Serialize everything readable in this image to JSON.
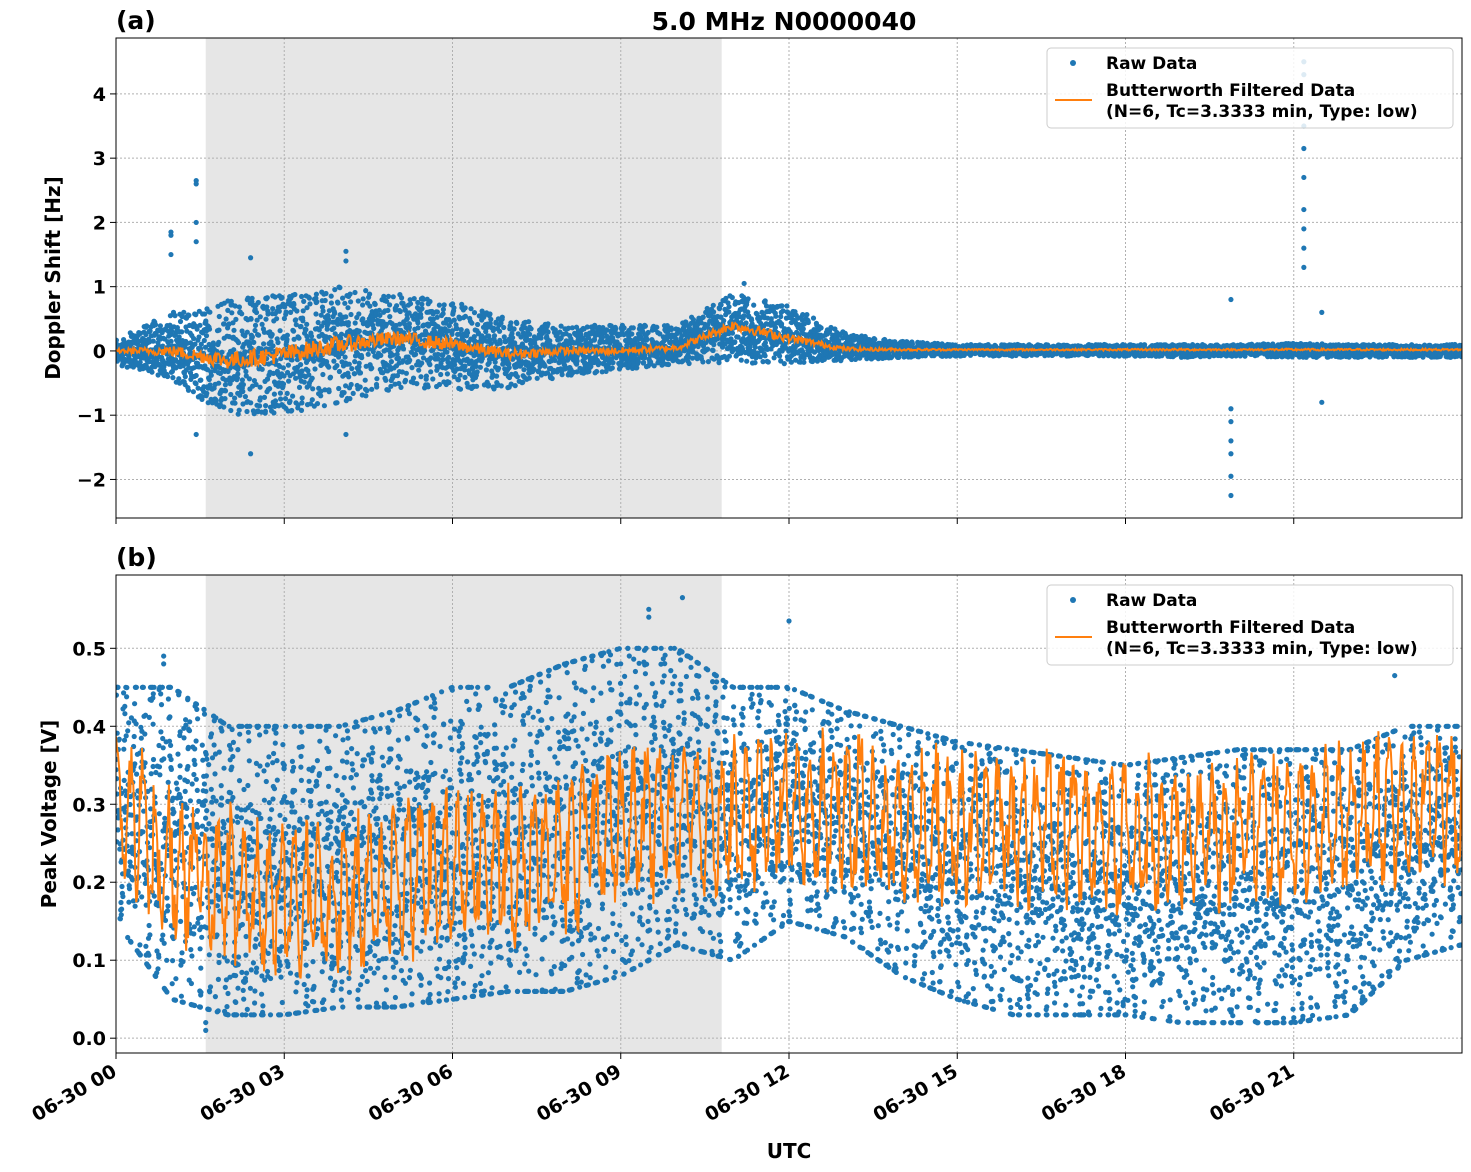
{
  "title": "5.0 MHz N0000040",
  "colors": {
    "raw": "#1f77b4",
    "filtered": "#ff7f0e",
    "shade": "#e6e6e6",
    "grid": "#b0b0b0"
  },
  "x_axis": {
    "label": "UTC",
    "range_hours": [
      0,
      24
    ],
    "ticks": [
      {
        "h": 0,
        "label": "06-30 00"
      },
      {
        "h": 3,
        "label": "06-30 03"
      },
      {
        "h": 6,
        "label": "06-30 06"
      },
      {
        "h": 9,
        "label": "06-30 09"
      },
      {
        "h": 12,
        "label": "06-30 12"
      },
      {
        "h": 15,
        "label": "06-30 15"
      },
      {
        "h": 18,
        "label": "06-30 18"
      },
      {
        "h": 21,
        "label": "06-30 21"
      }
    ]
  },
  "shaded_interval_hours": [
    1.6,
    10.8
  ],
  "legend": {
    "raw": "Raw Data",
    "filtered_line1": "Butterworth Filtered Data",
    "filtered_line2": "(N=6, Tc=3.3333 min, Type: low)",
    "placement": "upper-right"
  },
  "chart_data": [
    {
      "panel": "(a)",
      "type": "scatter+line",
      "ylabel": "Doppler Shift [Hz]",
      "ylim": [
        -2.6,
        4.87
      ],
      "yticks": [
        {
          "v": -2,
          "label": "−2"
        },
        {
          "v": -1,
          "label": "−1"
        },
        {
          "v": 0,
          "label": "0"
        },
        {
          "v": 1,
          "label": "1"
        },
        {
          "v": 2,
          "label": "2"
        },
        {
          "v": 3,
          "label": "3"
        },
        {
          "v": 4,
          "label": "4"
        }
      ],
      "grid": true,
      "hours": [
        0,
        1,
        2,
        3,
        4,
        5,
        6,
        7,
        8,
        9,
        10,
        11,
        12,
        13,
        14,
        15,
        16,
        17,
        18,
        19,
        20,
        21,
        22,
        23,
        24
      ],
      "filtered": [
        0.0,
        0.0,
        -0.15,
        -0.05,
        0.1,
        0.2,
        0.1,
        -0.05,
        0.0,
        0.0,
        0.05,
        0.4,
        0.2,
        0.03,
        0.02,
        0.02,
        0.02,
        0.02,
        0.02,
        0.02,
        0.02,
        0.02,
        0.02,
        0.02,
        0.02
      ],
      "raw_low": [
        -0.2,
        -0.5,
        -1.0,
        -1.0,
        -0.8,
        -0.6,
        -0.6,
        -0.6,
        -0.4,
        -0.3,
        -0.2,
        -0.2,
        -0.2,
        -0.15,
        -0.1,
        -0.08,
        -0.08,
        -0.08,
        -0.08,
        -0.1,
        -0.08,
        -0.1,
        -0.1,
        -0.1,
        -0.1
      ],
      "raw_high": [
        0.2,
        0.6,
        0.8,
        0.9,
        1.0,
        0.9,
        0.8,
        0.5,
        0.4,
        0.4,
        0.4,
        0.9,
        0.7,
        0.3,
        0.15,
        0.1,
        0.1,
        0.1,
        0.1,
        0.1,
        0.1,
        0.12,
        0.1,
        0.1,
        0.1
      ],
      "raw_outliers": [
        {
          "h": 1.43,
          "v": [
            2.65,
            2.6,
            2.0,
            1.7,
            -1.3
          ]
        },
        {
          "h": 0.98,
          "v": [
            1.85,
            1.8,
            1.5
          ]
        },
        {
          "h": 4.1,
          "v": [
            1.55,
            1.4,
            -1.3
          ]
        },
        {
          "h": 2.4,
          "v": [
            -1.6,
            1.45
          ]
        },
        {
          "h": 19.88,
          "v": [
            0.8,
            -0.9,
            -1.1,
            -1.4,
            -1.6,
            -1.95,
            -2.25
          ]
        },
        {
          "h": 21.18,
          "v": [
            4.5,
            4.3,
            3.5,
            3.15,
            2.7,
            2.2,
            1.9,
            1.6,
            1.3
          ]
        },
        {
          "h": 21.5,
          "v": [
            0.6,
            -0.8
          ]
        },
        {
          "h": 11.2,
          "v": [
            1.05
          ]
        }
      ]
    },
    {
      "panel": "(b)",
      "type": "scatter+line",
      "ylabel": "Peak Voltage [V]",
      "ylim": [
        -0.019,
        0.594
      ],
      "yticks": [
        {
          "v": 0,
          "label": "0.0"
        },
        {
          "v": 0.1,
          "label": "0.1"
        },
        {
          "v": 0.2,
          "label": "0.2"
        },
        {
          "v": 0.3,
          "label": "0.3"
        },
        {
          "v": 0.4,
          "label": "0.4"
        },
        {
          "v": 0.5,
          "label": "0.5"
        }
      ],
      "grid": true,
      "hours": [
        0,
        1,
        2,
        3,
        4,
        5,
        6,
        7,
        8,
        9,
        10,
        11,
        12,
        13,
        14,
        15,
        16,
        17,
        18,
        19,
        20,
        21,
        22,
        23,
        24
      ],
      "filtered": [
        0.3,
        0.22,
        0.2,
        0.18,
        0.18,
        0.2,
        0.22,
        0.22,
        0.24,
        0.27,
        0.28,
        0.28,
        0.3,
        0.29,
        0.27,
        0.27,
        0.27,
        0.27,
        0.26,
        0.26,
        0.27,
        0.27,
        0.28,
        0.3,
        0.3
      ],
      "raw_low": [
        0.15,
        0.05,
        0.03,
        0.03,
        0.04,
        0.04,
        0.05,
        0.06,
        0.06,
        0.08,
        0.12,
        0.1,
        0.15,
        0.13,
        0.08,
        0.05,
        0.03,
        0.03,
        0.03,
        0.02,
        0.02,
        0.02,
        0.03,
        0.1,
        0.12
      ],
      "raw_high": [
        0.45,
        0.45,
        0.4,
        0.4,
        0.4,
        0.42,
        0.45,
        0.45,
        0.48,
        0.5,
        0.5,
        0.45,
        0.45,
        0.42,
        0.4,
        0.38,
        0.37,
        0.36,
        0.35,
        0.36,
        0.37,
        0.37,
        0.37,
        0.4,
        0.4
      ],
      "raw_outliers": [
        {
          "h": 0.85,
          "v": [
            0.49,
            0.48
          ]
        },
        {
          "h": 9.5,
          "v": [
            0.55,
            0.54
          ]
        },
        {
          "h": 10.1,
          "v": [
            0.565
          ]
        },
        {
          "h": 12.0,
          "v": [
            0.535
          ]
        },
        {
          "h": 22.8,
          "v": [
            0.465
          ]
        },
        {
          "h": 1.6,
          "v": [
            0.01,
            0.02
          ]
        }
      ]
    }
  ]
}
